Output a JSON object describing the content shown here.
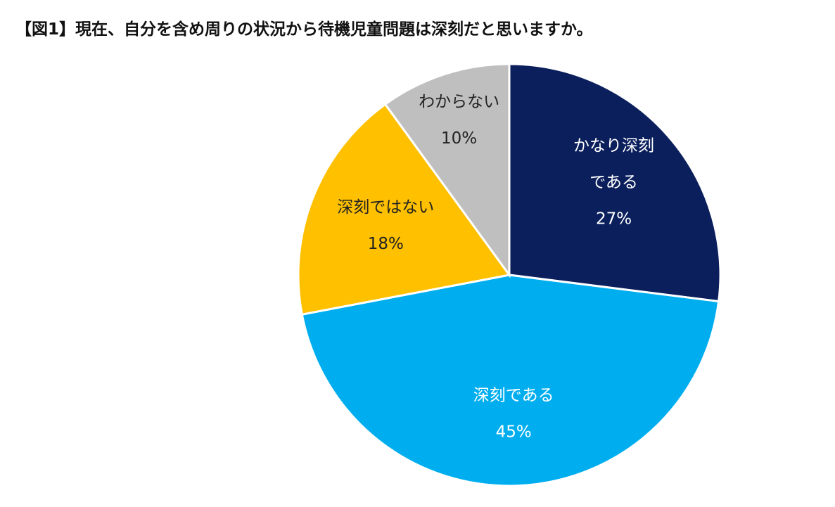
{
  "chart_data": {
    "type": "pie",
    "title": "【図1】現在、自分を含め周りの状況から待機児童問題は深刻だと思いますか。",
    "categories": [
      "かなり深刻である",
      "深刻である",
      "深刻ではない",
      "わからない"
    ],
    "values": [
      27,
      45,
      18,
      10
    ],
    "colors": [
      "#0b1f5c",
      "#00aeef",
      "#ffc000",
      "#bfbfbf"
    ],
    "label_colors": [
      "#ffffff",
      "#ffffff",
      "#222222",
      "#222222"
    ],
    "label_lines": [
      [
        "かなり深刻",
        "である"
      ],
      [
        "深刻である"
      ],
      [
        "深刻ではない"
      ],
      [
        "わからない"
      ]
    ],
    "value_labels": [
      "27%",
      "45%",
      "18%",
      "10%"
    ],
    "start": "12 o'clock",
    "direction": "clockwise"
  }
}
